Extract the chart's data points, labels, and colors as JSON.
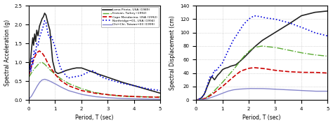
{
  "left_ylabel": "Spectral Acceleration (g)",
  "right_ylabel": "Spectral Displacement (cm)",
  "xlabel": "Period, T (sec)",
  "xlim": [
    0,
    5
  ],
  "left_ylim": [
    0,
    2.5
  ],
  "right_ylim": [
    0,
    140
  ],
  "left_yticks": [
    0,
    0.5,
    1.0,
    1.5,
    2.0,
    2.5
  ],
  "right_yticks": [
    0,
    20,
    40,
    60,
    80,
    100,
    120,
    140
  ],
  "xticks": [
    0,
    1,
    2,
    3,
    4,
    5
  ],
  "legend_entries": [
    "Loma Prieta, USA (1989)",
    "Erzican, Turkey (1992)",
    "Cape Mendocino, USA (1992)",
    "Northridge−01, USA (1994)",
    "Chi−Chi, Taiwan−03 (1999)"
  ],
  "colors": [
    "#222222",
    "#5aaa32",
    "#cc0000",
    "#0000dd",
    "#8888cc"
  ],
  "linestyles": [
    "-",
    "-.",
    "--",
    ":",
    "-"
  ],
  "linewidths": [
    1.2,
    1.0,
    1.2,
    1.2,
    1.0
  ],
  "background_color": "#ffffff",
  "grid_color": "#bbbbbb"
}
